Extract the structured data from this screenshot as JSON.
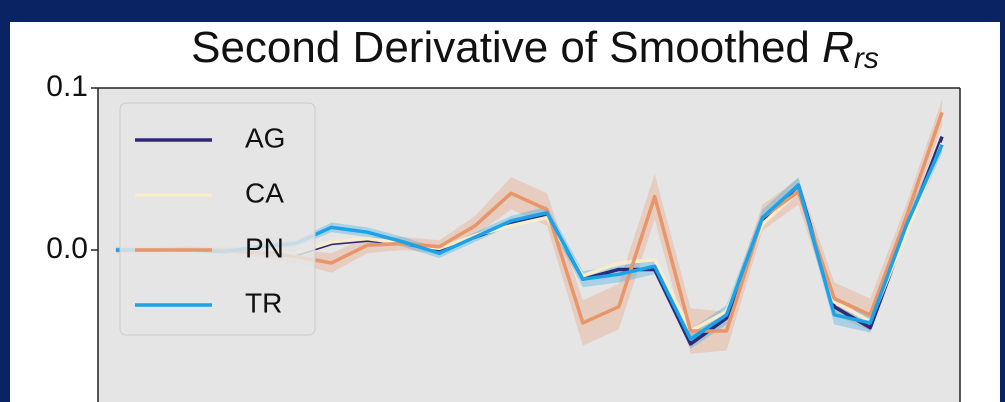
{
  "chart_data": {
    "type": "line",
    "title": "Second Derivative of Smoothed ",
    "title_symbol": "R",
    "title_subscript": "rs",
    "categories": [
      null,
      null,
      null,
      null,
      null,
      null,
      null,
      null,
      null,
      null,
      null,
      null,
      null,
      null,
      null,
      null,
      null,
      null,
      null,
      null,
      null,
      null,
      null,
      null
    ],
    "ylim": [
      -0.094,
      0.1
    ],
    "yticks": [
      {
        "value": 0,
        "label": "0.0"
      },
      {
        "value": 0.1,
        "label": "0.1"
      }
    ],
    "legend": "upper left",
    "background": "#e5e5e5",
    "series": [
      {
        "name": "AG",
        "color": "#2e2a7a",
        "values": [
          0.0,
          0.0,
          0.0,
          -0.001,
          0.001,
          -0.003,
          0.004,
          0.006,
          0.004,
          0.0,
          0.008,
          0.016,
          0.022,
          -0.018,
          -0.012,
          -0.012,
          -0.058,
          -0.042,
          0.018,
          0.04,
          -0.035,
          -0.048,
          0.012,
          0.07
        ]
      },
      {
        "name": "CA",
        "color": "#f8eccb",
        "values": [
          0.0,
          0.0,
          0.0,
          -0.001,
          0.001,
          -0.002,
          0.005,
          0.007,
          0.004,
          0.001,
          0.009,
          0.015,
          0.02,
          -0.016,
          -0.008,
          -0.006,
          -0.05,
          -0.038,
          0.016,
          0.036,
          -0.032,
          -0.044,
          0.01,
          0.066
        ]
      },
      {
        "name": "PN",
        "color": "#e8956a",
        "values": [
          0.0,
          0.0,
          0.001,
          0.0,
          -0.002,
          -0.004,
          -0.008,
          0.003,
          0.004,
          0.002,
          0.015,
          0.035,
          0.025,
          -0.045,
          -0.035,
          0.033,
          -0.05,
          -0.05,
          0.02,
          0.036,
          -0.03,
          -0.04,
          0.02,
          0.085
        ],
        "errors": [
          0.002,
          0.002,
          0.002,
          0.002,
          0.003,
          0.004,
          0.006,
          0.005,
          0.004,
          0.004,
          0.006,
          0.01,
          0.01,
          0.014,
          0.014,
          0.014,
          0.014,
          0.012,
          0.008,
          0.008,
          0.01,
          0.01,
          0.008,
          0.008
        ]
      },
      {
        "name": "TR",
        "color": "#1aa3e8",
        "values": [
          0.0,
          0.0,
          0.0,
          -0.001,
          0.002,
          0.004,
          0.014,
          0.011,
          0.005,
          -0.002,
          0.008,
          0.018,
          0.023,
          -0.018,
          -0.015,
          -0.01,
          -0.055,
          -0.04,
          0.02,
          0.04,
          -0.04,
          -0.045,
          0.015,
          0.065
        ],
        "errors": [
          0.001,
          0.001,
          0.001,
          0.001,
          0.002,
          0.002,
          0.003,
          0.003,
          0.003,
          0.003,
          0.003,
          0.003,
          0.004,
          0.005,
          0.005,
          0.005,
          0.006,
          0.006,
          0.005,
          0.005,
          0.006,
          0.006,
          0.005,
          0.005
        ]
      }
    ]
  }
}
